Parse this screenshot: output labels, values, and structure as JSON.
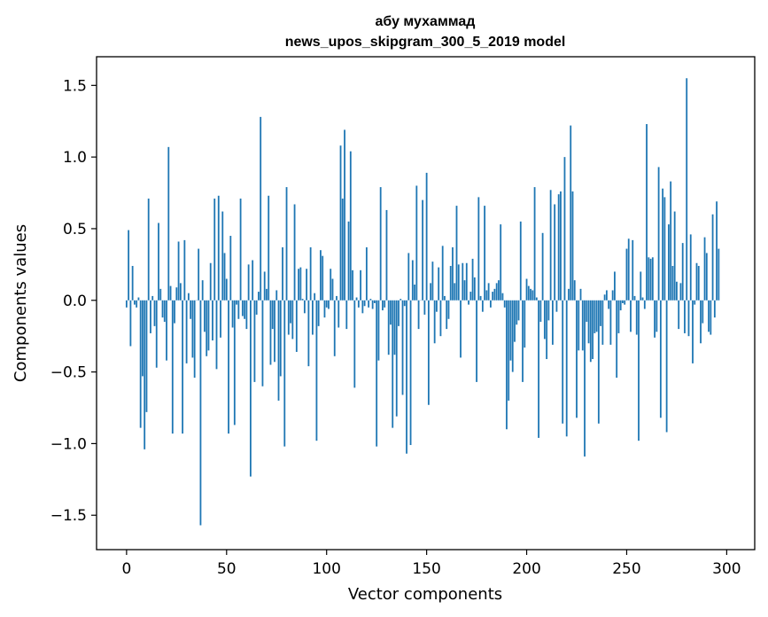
{
  "chart_data": {
    "type": "bar",
    "title_line1": "абу мухаммад",
    "title_line2": "news_upos_skipgram_300_5_2019 model",
    "xlabel": "Vector components",
    "ylabel": "Components values",
    "xlim": [
      -15,
      314
    ],
    "ylim": [
      -1.74,
      1.7
    ],
    "xticks": [
      0,
      50,
      100,
      150,
      200,
      250,
      300
    ],
    "xtick_labels": [
      "0",
      "50",
      "100",
      "150",
      "200",
      "250",
      "300"
    ],
    "yticks": [
      -1.5,
      -1.0,
      -0.5,
      0.0,
      0.5,
      1.0,
      1.5
    ],
    "ytick_labels": [
      "−1.5",
      "−1.0",
      "−0.5",
      "0.0",
      "0.5",
      "1.0",
      "1.5"
    ],
    "bar_color": "#1f77b4",
    "x_start": 0,
    "values": [
      -0.05,
      0.49,
      -0.32,
      0.24,
      -0.03,
      -0.05,
      0.02,
      -0.89,
      -0.53,
      -1.04,
      -0.78,
      0.71,
      -0.23,
      0.03,
      -0.18,
      -0.47,
      0.54,
      0.08,
      -0.12,
      -0.15,
      -0.42,
      1.07,
      0.1,
      -0.93,
      -0.16,
      0.09,
      0.41,
      0.12,
      -0.93,
      0.42,
      -0.44,
      0.05,
      -0.13,
      -0.4,
      -0.54,
      0.0,
      0.36,
      -1.57,
      0.14,
      -0.22,
      -0.39,
      -0.35,
      0.26,
      -0.28,
      0.71,
      -0.48,
      0.73,
      -0.26,
      0.62,
      0.33,
      0.15,
      -0.93,
      0.45,
      -0.19,
      -0.87,
      -0.03,
      -0.13,
      0.71,
      -0.11,
      -0.13,
      -0.2,
      0.25,
      -1.23,
      0.28,
      -0.57,
      -0.1,
      0.06,
      1.28,
      -0.6,
      0.2,
      0.08,
      0.73,
      -0.45,
      -0.2,
      -0.43,
      0.07,
      -0.7,
      -0.53,
      0.37,
      -1.02,
      0.79,
      -0.24,
      -0.16,
      -0.27,
      0.67,
      -0.36,
      0.22,
      0.23,
      0.01,
      -0.09,
      0.22,
      -0.46,
      0.37,
      -0.24,
      0.05,
      -0.98,
      -0.18,
      0.35,
      0.31,
      -0.12,
      -0.05,
      -0.06,
      0.22,
      0.15,
      -0.39,
      0.03,
      -0.19,
      1.08,
      0.71,
      1.19,
      -0.2,
      0.55,
      1.04,
      0.21,
      -0.61,
      0.02,
      -0.05,
      0.21,
      -0.09,
      -0.04,
      0.37,
      -0.05,
      0.01,
      -0.06,
      -0.02,
      -1.02,
      -0.42,
      0.79,
      -0.07,
      -0.05,
      0.63,
      -0.38,
      -0.17,
      -0.89,
      -0.38,
      -0.81,
      -0.18,
      0.01,
      -0.66,
      -0.04,
      -1.07,
      0.33,
      -1.01,
      0.28,
      0.11,
      0.8,
      -0.2,
      0.0,
      0.7,
      -0.1,
      0.89,
      -0.73,
      0.12,
      0.27,
      -0.3,
      -0.08,
      0.23,
      -0.25,
      0.38,
      0.03,
      -0.2,
      -0.13,
      0.24,
      0.37,
      0.12,
      0.66,
      0.25,
      -0.4,
      0.26,
      0.14,
      0.26,
      -0.03,
      0.06,
      0.29,
      0.16,
      -0.57,
      0.72,
      0.03,
      -0.08,
      0.66,
      0.07,
      0.12,
      -0.05,
      0.06,
      0.08,
      0.12,
      0.14,
      0.53,
      0.05,
      -0.05,
      -0.9,
      -0.7,
      -0.42,
      -0.5,
      -0.29,
      -0.17,
      -0.14,
      0.55,
      -0.57,
      -0.33,
      0.15,
      0.1,
      0.08,
      0.07,
      0.79,
      0.02,
      -0.96,
      -0.15,
      0.47,
      -0.27,
      -0.41,
      -0.14,
      0.77,
      -0.31,
      0.67,
      -0.08,
      0.74,
      0.76,
      -0.86,
      1.0,
      -0.95,
      0.08,
      1.22,
      0.76,
      0.14,
      -0.82,
      -0.35,
      0.08,
      -0.35,
      -1.09,
      -0.15,
      -0.3,
      -0.43,
      -0.41,
      -0.23,
      -0.22,
      -0.86,
      -0.18,
      -0.31,
      0.04,
      0.07,
      -0.06,
      -0.31,
      0.07,
      0.2,
      -0.54,
      -0.23,
      -0.07,
      -0.02,
      -0.03,
      0.36,
      0.43,
      -0.22,
      0.42,
      0.03,
      -0.24,
      -0.98,
      0.2,
      0.02,
      -0.06,
      1.23,
      0.3,
      0.29,
      0.3,
      -0.26,
      -0.22,
      0.93,
      -0.82,
      0.78,
      0.72,
      -0.92,
      0.53,
      0.83,
      0.24,
      0.62,
      0.13,
      -0.2,
      0.12,
      0.4,
      -0.23,
      1.55,
      -0.25,
      0.46,
      -0.44,
      -0.03,
      0.26,
      0.24,
      -0.3,
      -0.16,
      0.44,
      0.33,
      -0.22,
      -0.24,
      0.6,
      -0.12,
      0.69,
      0.36
    ]
  }
}
